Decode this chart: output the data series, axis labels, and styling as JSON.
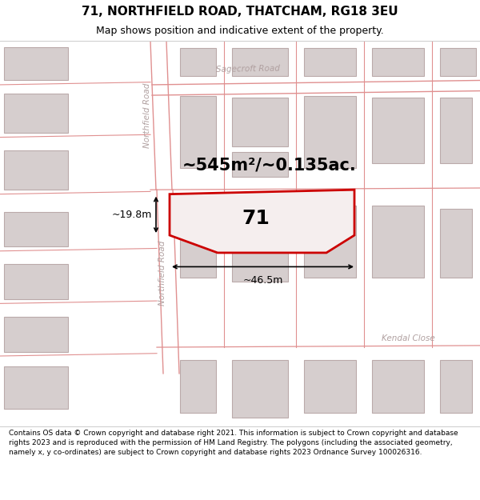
{
  "title": "71, NORTHFIELD ROAD, THATCHAM, RG18 3EU",
  "subtitle": "Map shows position and indicative extent of the property.",
  "footer": "Contains OS data © Crown copyright and database right 2021. This information is subject to Crown copyright and database rights 2023 and is reproduced with the permission of HM Land Registry. The polygons (including the associated geometry, namely x, y co-ordinates) are subject to Crown copyright and database rights 2023 Ordnance Survey 100026316.",
  "area_label": "~545m²/~0.135ac.",
  "number_label": "71",
  "width_label": "~46.5m",
  "height_label": "~19.8m",
  "road_label_top": "Northfield Road",
  "road_label_bottom": "Northfield Road",
  "sagecroft_label": "Sagecroft Road",
  "kendal_label": "Kendal Close",
  "bg_color": "#ffffff",
  "map_bg": "#f7f3f3",
  "building_fill": "#d6cece",
  "building_stroke": "#bbaaaa",
  "road_line_color": "#e09090",
  "highlight_fill": "#f5eeee",
  "highlight_stroke": "#cc0000",
  "dim_line_color": "#000000",
  "road_text_color": "#b0a0a0",
  "street_label_color": "#999999",
  "title_fontsize": 11,
  "subtitle_fontsize": 9,
  "footer_fontsize": 6.5,
  "area_fontsize": 15,
  "number_fontsize": 18,
  "dim_fontsize": 9
}
